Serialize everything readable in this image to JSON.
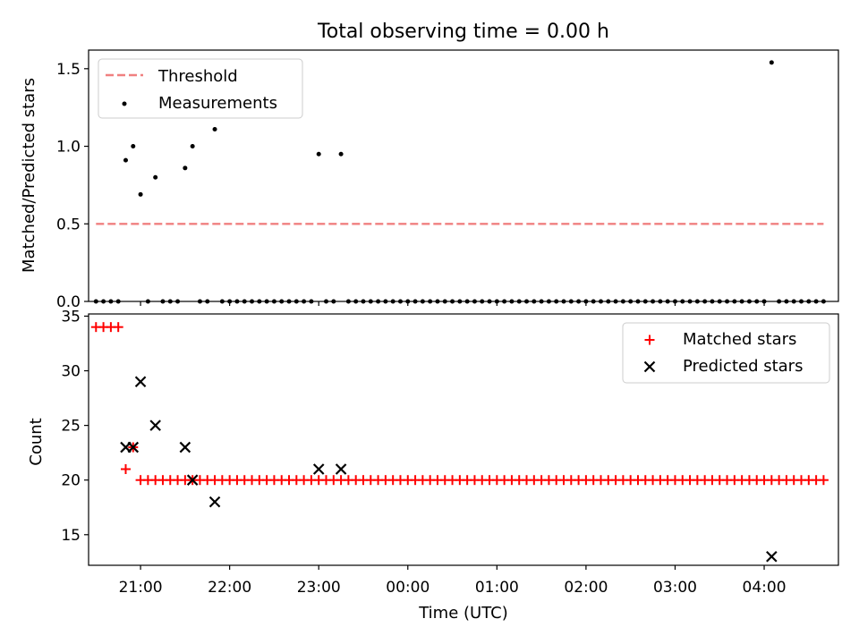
{
  "figure": {
    "title": "Total observing time = 0.00 h",
    "xlabel": "Time (UTC)"
  },
  "chart_data": [
    {
      "type": "scatter",
      "panel": "top",
      "ylabel": "Matched/Predicted stars",
      "xlim": [
        "20:25",
        "04:50"
      ],
      "ylim": [
        0,
        1.62
      ],
      "yticks": [
        "0.0",
        "0.5",
        "1.0",
        "1.5"
      ],
      "threshold": {
        "name": "Threshold",
        "value": 0.5,
        "x_range": [
          "20:30",
          "04:40"
        ],
        "color": "#f08080",
        "style": "dashed"
      },
      "legend_position": "upper left",
      "measurements": {
        "name": "Measurements",
        "color": "#000000",
        "points": [
          [
            "20:30",
            0
          ],
          [
            "20:35",
            0
          ],
          [
            "20:40",
            0
          ],
          [
            "20:45",
            0
          ],
          [
            "20:50",
            0.91
          ],
          [
            "20:55",
            1.0
          ],
          [
            "21:00",
            0.69
          ],
          [
            "21:05",
            0
          ],
          [
            "21:10",
            0.8
          ],
          [
            "21:15",
            0
          ],
          [
            "21:20",
            0
          ],
          [
            "21:25",
            0
          ],
          [
            "21:30",
            0.86
          ],
          [
            "21:35",
            1.0
          ],
          [
            "21:40",
            0
          ],
          [
            "21:45",
            0
          ],
          [
            "21:50",
            1.11
          ],
          [
            "21:55",
            0
          ],
          [
            "22:00",
            0
          ],
          [
            "22:05",
            0
          ],
          [
            "22:10",
            0
          ],
          [
            "22:15",
            0
          ],
          [
            "22:20",
            0
          ],
          [
            "22:25",
            0
          ],
          [
            "22:30",
            0
          ],
          [
            "22:35",
            0
          ],
          [
            "22:40",
            0
          ],
          [
            "22:45",
            0
          ],
          [
            "22:50",
            0
          ],
          [
            "22:55",
            0
          ],
          [
            "23:00",
            0.95
          ],
          [
            "23:05",
            0
          ],
          [
            "23:10",
            0
          ],
          [
            "23:15",
            0.95
          ],
          [
            "23:20",
            0
          ],
          [
            "23:25",
            0
          ],
          [
            "23:30",
            0
          ],
          [
            "23:35",
            0
          ],
          [
            "23:40",
            0
          ],
          [
            "23:45",
            0
          ],
          [
            "23:50",
            0
          ],
          [
            "23:55",
            0
          ],
          [
            "00:00",
            0
          ],
          [
            "00:05",
            0
          ],
          [
            "00:10",
            0
          ],
          [
            "00:15",
            0
          ],
          [
            "00:20",
            0
          ],
          [
            "00:25",
            0
          ],
          [
            "00:30",
            0
          ],
          [
            "00:35",
            0
          ],
          [
            "00:40",
            0
          ],
          [
            "00:45",
            0
          ],
          [
            "00:50",
            0
          ],
          [
            "00:55",
            0
          ],
          [
            "01:00",
            0
          ],
          [
            "01:05",
            0
          ],
          [
            "01:10",
            0
          ],
          [
            "01:15",
            0
          ],
          [
            "01:20",
            0
          ],
          [
            "01:25",
            0
          ],
          [
            "01:30",
            0
          ],
          [
            "01:35",
            0
          ],
          [
            "01:40",
            0
          ],
          [
            "01:45",
            0
          ],
          [
            "01:50",
            0
          ],
          [
            "01:55",
            0
          ],
          [
            "02:00",
            0
          ],
          [
            "02:05",
            0
          ],
          [
            "02:10",
            0
          ],
          [
            "02:15",
            0
          ],
          [
            "02:20",
            0
          ],
          [
            "02:25",
            0
          ],
          [
            "02:30",
            0
          ],
          [
            "02:35",
            0
          ],
          [
            "02:40",
            0
          ],
          [
            "02:45",
            0
          ],
          [
            "02:50",
            0
          ],
          [
            "02:55",
            0
          ],
          [
            "03:00",
            0
          ],
          [
            "03:05",
            0
          ],
          [
            "03:10",
            0
          ],
          [
            "03:15",
            0
          ],
          [
            "03:20",
            0
          ],
          [
            "03:25",
            0
          ],
          [
            "03:30",
            0
          ],
          [
            "03:35",
            0
          ],
          [
            "03:40",
            0
          ],
          [
            "03:45",
            0
          ],
          [
            "03:50",
            0
          ],
          [
            "03:55",
            0
          ],
          [
            "04:00",
            0
          ],
          [
            "04:05",
            1.54
          ],
          [
            "04:10",
            0
          ],
          [
            "04:15",
            0
          ],
          [
            "04:20",
            0
          ],
          [
            "04:25",
            0
          ],
          [
            "04:30",
            0
          ],
          [
            "04:35",
            0
          ],
          [
            "04:40",
            0
          ]
        ]
      }
    },
    {
      "type": "scatter",
      "panel": "bottom",
      "ylabel": "Count",
      "xlim": [
        "20:25",
        "04:50"
      ],
      "ylim": [
        12.2,
        35.2
      ],
      "yticks": [
        "15",
        "20",
        "25",
        "30",
        "35"
      ],
      "xticks": [
        "21:00",
        "22:00",
        "23:00",
        "00:00",
        "01:00",
        "02:00",
        "03:00",
        "04:00"
      ],
      "legend_position": "upper right",
      "series": [
        {
          "name": "Matched stars",
          "marker": "plus",
          "color": "#ff0000",
          "points": [
            [
              "20:30",
              34
            ],
            [
              "20:35",
              34
            ],
            [
              "20:40",
              34
            ],
            [
              "20:45",
              34
            ],
            [
              "20:50",
              21
            ],
            [
              "20:55",
              23
            ],
            {
              "from": "21:00",
              "to": "04:40",
              "step_minutes": 5,
              "value": 20
            }
          ]
        },
        {
          "name": "Predicted stars",
          "marker": "x",
          "color": "#000000",
          "points": [
            [
              "20:50",
              23
            ],
            [
              "20:55",
              23
            ],
            [
              "21:00",
              29
            ],
            [
              "21:10",
              25
            ],
            [
              "21:30",
              23
            ],
            [
              "21:35",
              20
            ],
            [
              "21:50",
              18
            ],
            [
              "23:00",
              21
            ],
            [
              "23:15",
              21
            ],
            [
              "04:05",
              13
            ]
          ]
        }
      ]
    }
  ]
}
